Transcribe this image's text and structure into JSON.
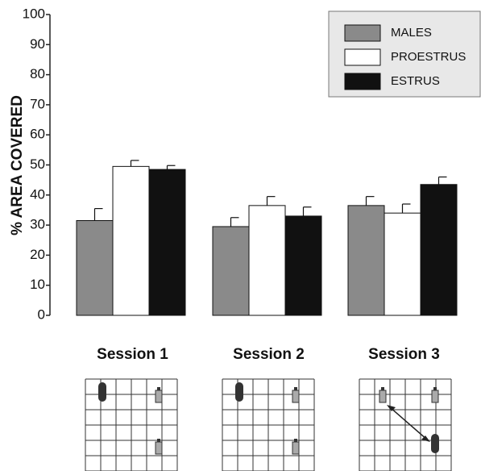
{
  "chart_data": {
    "type": "bar",
    "y_label": "% AREA COVERED",
    "categories": [
      "Session 1",
      "Session 2",
      "Session 3"
    ],
    "series": [
      {
        "name": "MALES",
        "color": "#8a8a8a",
        "values": [
          31.5,
          29.5,
          36.5
        ],
        "errors": [
          4,
          3,
          3
        ]
      },
      {
        "name": "PROESTRUS",
        "color": "#ffffff",
        "values": [
          49.5,
          36.5,
          34
        ],
        "errors": [
          2,
          3,
          3
        ]
      },
      {
        "name": "ESTRUS",
        "color": "#111111",
        "values": [
          48.5,
          33,
          43.5
        ],
        "errors": [
          1.3,
          3,
          2.5
        ]
      }
    ],
    "ylim": [
      0,
      100
    ],
    "yticks": [
      0,
      10,
      20,
      30,
      40,
      50,
      60,
      70,
      80,
      90,
      100
    ],
    "legend": "upper right"
  }
}
